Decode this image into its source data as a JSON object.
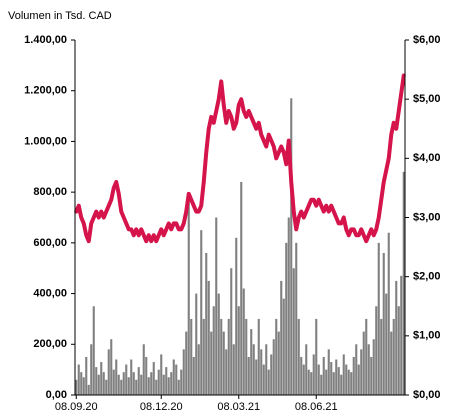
{
  "chart_data": {
    "type": "bar-line",
    "title": "Volumen in Tsd. CAD",
    "categories": [
      "08.09.20",
      null,
      null,
      null,
      null,
      null,
      null,
      null,
      null,
      null,
      null,
      null,
      null,
      null,
      null,
      null,
      null,
      null,
      null,
      null,
      null,
      null,
      null,
      null,
      null,
      null,
      null,
      null,
      null,
      null,
      null,
      null,
      null,
      null,
      "08.12.20",
      null,
      null,
      null,
      null,
      null,
      null,
      null,
      null,
      null,
      null,
      null,
      null,
      null,
      null,
      null,
      null,
      null,
      null,
      null,
      null,
      null,
      null,
      null,
      null,
      null,
      null,
      null,
      null,
      null,
      null,
      "08.03.21",
      null,
      null,
      null,
      null,
      null,
      null,
      null,
      null,
      null,
      null,
      null,
      null,
      null,
      null,
      null,
      null,
      null,
      null,
      null,
      null,
      null,
      null,
      null,
      null,
      null,
      null,
      null,
      null,
      null,
      null,
      "08.06.21",
      null,
      null,
      null,
      null,
      null,
      null,
      null,
      null,
      null,
      null,
      null,
      null,
      null,
      null,
      null,
      null,
      null,
      null,
      null,
      null,
      null,
      null,
      null,
      null,
      null,
      null,
      null,
      null,
      null,
      null,
      null,
      null,
      null,
      null,
      null
    ],
    "series": [
      {
        "color": "#808080",
        "values": [
          60,
          120,
          90,
          70,
          150,
          40,
          200,
          350,
          110,
          80,
          130,
          90,
          60,
          180,
          220,
          100,
          140,
          80,
          60,
          90,
          120,
          70,
          140,
          90,
          60,
          110,
          80,
          200,
          150,
          70,
          90,
          130,
          60,
          100,
          160,
          80,
          110,
          70,
          90,
          140,
          120,
          60,
          100,
          180,
          250,
          800,
          300,
          150,
          400,
          200,
          650,
          300,
          560,
          450,
          250,
          350,
          700,
          400,
          300,
          250,
          180,
          300,
          500,
          200,
          620,
          350,
          840,
          420,
          300,
          150,
          260,
          200,
          140,
          300,
          180,
          120,
          200,
          100,
          160,
          220,
          300,
          250,
          450,
          380,
          600,
          700,
          1170,
          500,
          600,
          300,
          150,
          120,
          200,
          100,
          90,
          160,
          300,
          120,
          80,
          150,
          100,
          180,
          130,
          90,
          140,
          110,
          80,
          160,
          120,
          100,
          90,
          150,
          200,
          120,
          180,
          250,
          300,
          200,
          150,
          220,
          350,
          600,
          300,
          560,
          400,
          640,
          250,
          300,
          450,
          350,
          470,
          880
        ]
      },
      {
        "color": "#d4144a",
        "axis": "y2",
        "values": [
          3.1,
          3.2,
          3.0,
          2.9,
          2.7,
          2.6,
          2.9,
          3.0,
          3.1,
          3.0,
          3.1,
          3.0,
          3.1,
          3.2,
          3.3,
          3.5,
          3.6,
          3.4,
          3.1,
          3.0,
          2.9,
          2.8,
          2.8,
          2.7,
          2.8,
          2.7,
          2.8,
          2.7,
          2.6,
          2.7,
          2.6,
          2.7,
          2.6,
          2.7,
          2.8,
          2.7,
          2.8,
          2.9,
          2.8,
          2.9,
          2.9,
          2.8,
          2.8,
          2.9,
          3.1,
          3.4,
          3.3,
          3.2,
          3.1,
          3.1,
          3.2,
          3.6,
          4.1,
          4.5,
          4.7,
          4.6,
          4.8,
          5.0,
          5.3,
          4.9,
          4.6,
          4.8,
          4.7,
          4.5,
          4.6,
          4.9,
          5.0,
          4.8,
          4.7,
          4.8,
          4.7,
          4.6,
          4.5,
          4.6,
          4.4,
          4.3,
          4.2,
          4.4,
          4.3,
          4.2,
          4.0,
          4.1,
          4.2,
          4.1,
          3.9,
          4.3,
          3.6,
          3.1,
          2.8,
          3.0,
          3.1,
          3.0,
          3.1,
          3.2,
          3.3,
          3.3,
          3.2,
          3.3,
          3.2,
          3.1,
          3.2,
          3.1,
          3.2,
          3.1,
          3.0,
          2.9,
          2.9,
          3.0,
          2.8,
          2.7,
          2.8,
          2.8,
          2.7,
          2.7,
          2.8,
          2.7,
          2.6,
          2.7,
          2.8,
          2.7,
          2.8,
          3.0,
          3.3,
          3.6,
          3.8,
          4.0,
          4.4,
          4.6,
          4.5,
          4.8,
          5.1,
          5.4
        ]
      }
    ],
    "ylim": [
      0,
      1400
    ],
    "yticks": [
      {
        "value": 0,
        "label": "0,00"
      },
      {
        "value": 200,
        "label": "200,00"
      },
      {
        "value": 400,
        "label": "400,00"
      },
      {
        "value": 600,
        "label": "600,00"
      },
      {
        "value": 800,
        "label": "800,00"
      },
      {
        "value": 1000,
        "label": "1.000,00"
      },
      {
        "value": 1200,
        "label": "1.200,00"
      },
      {
        "value": 1400,
        "label": "1.400,00"
      }
    ],
    "y2lim": [
      0,
      6
    ],
    "y2ticks": [
      {
        "value": 0,
        "label": "$0,00"
      },
      {
        "value": 1,
        "label": "$1,00"
      },
      {
        "value": 2,
        "label": "$2,00"
      },
      {
        "value": 3,
        "label": "$3,00"
      },
      {
        "value": 4,
        "label": "$4,00"
      },
      {
        "value": 5,
        "label": "$5,00"
      },
      {
        "value": 6,
        "label": "$6,00"
      }
    ]
  }
}
